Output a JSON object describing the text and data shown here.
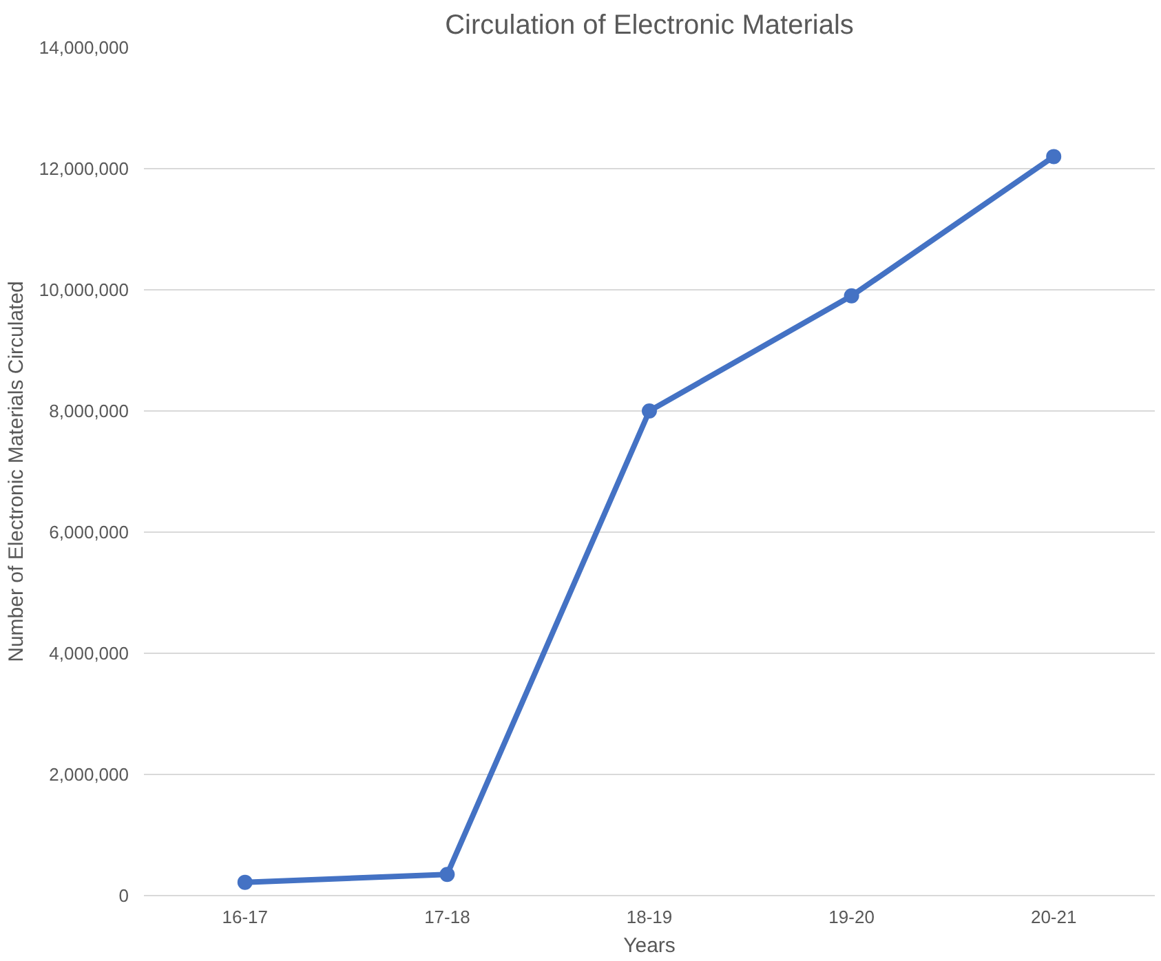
{
  "chart_data": {
    "type": "line",
    "title": "Circulation of Electronic Materials",
    "xlabel": "Years",
    "ylabel": "Number of Electronic Materials Circulated",
    "categories": [
      "16-17",
      "17-18",
      "18-19",
      "19-20",
      "20-21"
    ],
    "series": [
      {
        "color": "#4472c4",
        "values": [
          220000,
          350000,
          8000000,
          9900000,
          12200000
        ]
      }
    ],
    "ylim": [
      0,
      14000000
    ],
    "yticks": [
      0,
      {
        "value": 2000000,
        "label": "2,000,000"
      },
      {
        "value": 4000000,
        "label": "4,000,000"
      },
      {
        "value": 6000000,
        "label": "6,000,000"
      },
      {
        "value": 8000000,
        "label": "8,000,000"
      },
      {
        "value": 10000000,
        "label": "10,000,000"
      },
      {
        "value": 12000000,
        "label": "12,000,000"
      },
      {
        "value": 14000000,
        "label": "14,000,000"
      }
    ],
    "grid": "y",
    "marker": "circle",
    "line_style": "solid"
  }
}
